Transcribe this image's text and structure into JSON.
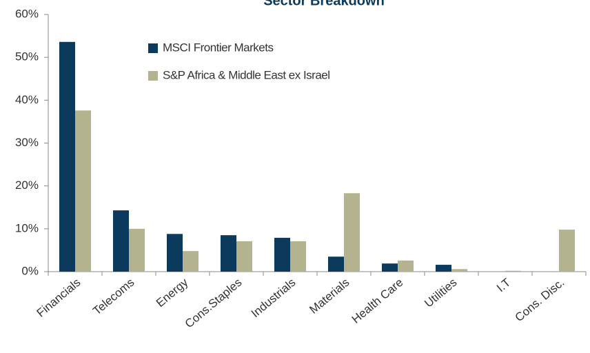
{
  "chart_data": {
    "type": "bar",
    "title": "Sector Breakdown",
    "categories": [
      "Financials",
      "Telecoms",
      "Energy",
      "Cons.Staples",
      "Industrials",
      "Materials",
      "Health Care",
      "Utilities",
      "I.T",
      "Cons. Disc."
    ],
    "series": [
      {
        "name": "MSCI Frontier Markets",
        "color": "#0b3a5c",
        "values": [
          53.6,
          14.3,
          8.8,
          8.5,
          7.9,
          3.5,
          1.9,
          1.6,
          0,
          0
        ]
      },
      {
        "name": "S&P Africa & Middle East ex Israel",
        "color": "#b3b38f",
        "values": [
          37.6,
          10.0,
          4.8,
          7.1,
          7.1,
          18.3,
          2.6,
          0.6,
          0.2,
          9.8
        ]
      }
    ],
    "ylim": [
      0,
      60
    ],
    "yticks": [
      {
        "value": 0,
        "label": "0%"
      },
      {
        "value": 10,
        "label": "10%"
      },
      {
        "value": 20,
        "label": "20%"
      },
      {
        "value": 30,
        "label": "30%"
      },
      {
        "value": 40,
        "label": "40%"
      },
      {
        "value": 50,
        "label": "50%"
      },
      {
        "value": 60,
        "label": "60%"
      }
    ],
    "legend": "upper-left",
    "grid": false
  }
}
